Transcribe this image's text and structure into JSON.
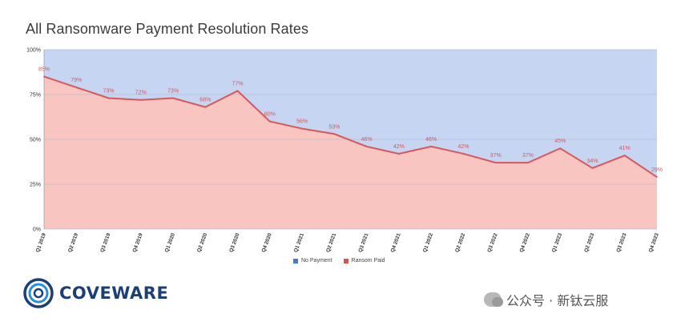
{
  "chart_data": {
    "type": "area",
    "title": "All Ransomware Payment Resolution Rates",
    "categories": [
      "Q1 2019",
      "Q2 2019",
      "Q3 2019",
      "Q4 2019",
      "Q1 2020",
      "Q2 2020",
      "Q3 2020",
      "Q4 2020",
      "Q1 2021",
      "Q2 2021",
      "Q3 2021",
      "Q4 2021",
      "Q1 2022",
      "Q2 2022",
      "Q3 2022",
      "Q4 2022",
      "Q1 2023",
      "Q2 2023",
      "Q3 2023",
      "Q4 2023"
    ],
    "series": [
      {
        "name": "No Payment",
        "values": [
          15,
          21,
          27,
          28,
          27,
          32,
          23,
          40,
          44,
          47,
          54,
          58,
          54,
          58,
          63,
          63,
          55,
          66,
          59,
          71
        ],
        "color": "#c5d5f2",
        "legend_color": "#4a78d0"
      },
      {
        "name": "Ransom Paid",
        "values": [
          85,
          79,
          73,
          72,
          73,
          68,
          77,
          60,
          56,
          53,
          46,
          42,
          46,
          42,
          37,
          37,
          45,
          34,
          41,
          29
        ],
        "color": "#f8c5c1",
        "line_color": "#d9575a",
        "legend_color": "#d9534f"
      }
    ],
    "data_labels": [
      "85%",
      "79%",
      "73%",
      "72%",
      "73%",
      "68%",
      "77%",
      "60%",
      "56%",
      "53%",
      "46%",
      "42%",
      "46%",
      "42%",
      "37%",
      "37%",
      "45%",
      "34%",
      "41%",
      "29%"
    ],
    "y_ticks": [
      "0%",
      "25%",
      "50%",
      "75%",
      "100%"
    ],
    "y_tick_values": [
      0,
      25,
      50,
      75,
      100
    ],
    "ylim": [
      0,
      100
    ],
    "stacked": true,
    "xlabel": "",
    "ylabel": "",
    "legend_position": "bottom"
  },
  "brand": {
    "name": "COVEWARE"
  },
  "watermark": {
    "text": "公众号 · 新钛云服"
  }
}
